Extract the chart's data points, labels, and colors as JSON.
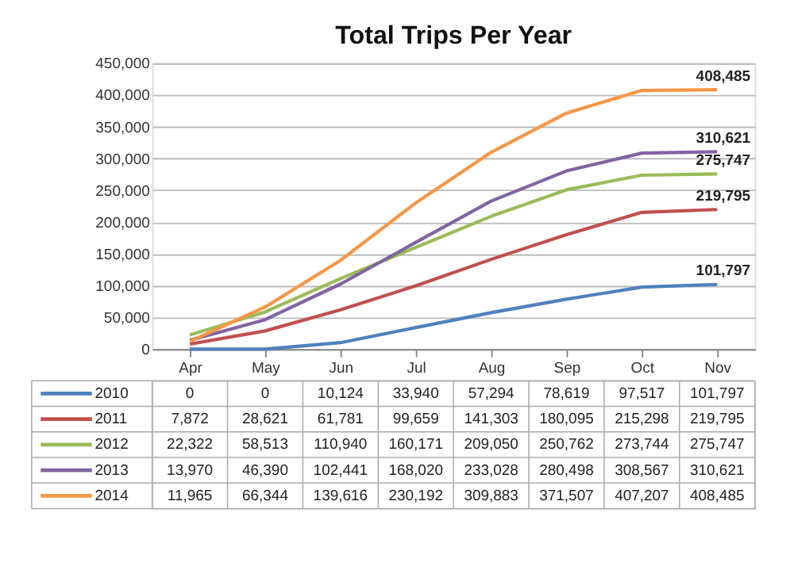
{
  "chart_data": {
    "type": "line",
    "title": "Total Trips Per Year",
    "categories": [
      "Apr",
      "May",
      "Jun",
      "Jul",
      "Aug",
      "Sep",
      "Oct",
      "Nov"
    ],
    "series": [
      {
        "name": "2010",
        "color": "#4f81bd",
        "values": [
          0,
          0,
          10124,
          33940,
          57294,
          78619,
          97517,
          101797
        ],
        "value_labels": [
          "0",
          "0",
          "10,124",
          "33,940",
          "57,294",
          "78,619",
          "97,517",
          "101,797"
        ]
      },
      {
        "name": "2011",
        "color": "#c0504d",
        "values": [
          7872,
          28621,
          61781,
          99659,
          141303,
          180095,
          215298,
          219795
        ],
        "value_labels": [
          "7,872",
          "28,621",
          "61,781",
          "99,659",
          "141,303",
          "180,095",
          "215,298",
          "219,795"
        ]
      },
      {
        "name": "2012",
        "color": "#9bbb59",
        "values": [
          22322,
          58513,
          110940,
          160171,
          209050,
          250762,
          273744,
          275747
        ],
        "value_labels": [
          "22,322",
          "58,513",
          "110,940",
          "160,171",
          "209,050",
          "250,762",
          "273,744",
          "275,747"
        ]
      },
      {
        "name": "2013",
        "color": "#8064a2",
        "values": [
          13970,
          46390,
          102441,
          168020,
          233028,
          280498,
          308567,
          310621
        ],
        "value_labels": [
          "13,970",
          "46,390",
          "102,441",
          "168,020",
          "233,028",
          "280,498",
          "308,567",
          "310,621"
        ]
      },
      {
        "name": "2014",
        "color": "#f79646",
        "values": [
          11965,
          66344,
          139616,
          230192,
          309883,
          371507,
          407207,
          408485
        ],
        "value_labels": [
          "11,965",
          "66,344",
          "139,616",
          "230,192",
          "309,883",
          "371,507",
          "407,207",
          "408,485"
        ]
      }
    ],
    "ylim": [
      0,
      450000
    ],
    "yticks": [
      {
        "value": 0,
        "label": "0"
      },
      {
        "value": 50000,
        "label": "50,000"
      },
      {
        "value": 100000,
        "label": "100,000"
      },
      {
        "value": 150000,
        "label": "150,000"
      },
      {
        "value": 200000,
        "label": "200,000"
      },
      {
        "value": 250000,
        "label": "250,000"
      },
      {
        "value": 300000,
        "label": "300,000"
      },
      {
        "value": 350000,
        "label": "350,000"
      },
      {
        "value": 400000,
        "label": "400,000"
      },
      {
        "value": 450000,
        "label": "450,000"
      }
    ],
    "grid": "y",
    "legend": "bottom",
    "marker": "none",
    "line_style": "solid",
    "annotations": [
      {
        "text": "408,485",
        "x": "Nov",
        "y": 408485
      },
      {
        "text": "310,621",
        "x": "Nov",
        "y": 310621
      },
      {
        "text": "275,747",
        "x": "Nov",
        "y": 275747
      },
      {
        "text": "219,795",
        "x": "Nov",
        "y": 219795
      },
      {
        "text": "101,797",
        "x": "Nov",
        "y": 101797
      }
    ]
  }
}
